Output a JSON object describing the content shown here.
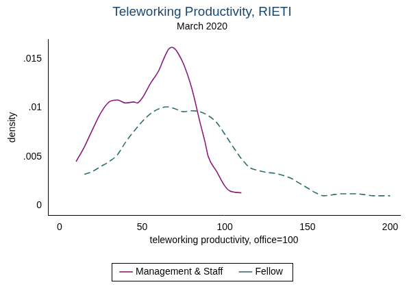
{
  "chart_data": {
    "type": "line",
    "title": "Teleworking Productivity, RIETI",
    "subtitle": "March 2020",
    "x_label": "teleworking productivity, office=100",
    "y_label": "density",
    "xlim": [
      -7,
      206
    ],
    "xticks": [
      0,
      50,
      100,
      150,
      200
    ],
    "ylim": [
      -0.001,
      0.017
    ],
    "yticks": [
      0,
      {
        "value": 0.005,
        "label": ".005"
      },
      {
        "value": 0.01,
        "label": ".01"
      },
      {
        "value": 0.015,
        "label": ".015"
      }
    ],
    "grid": false,
    "legend": "bottom",
    "series": [
      {
        "name": "Management & Staff",
        "color": "#8b1a7e",
        "line_style": "solid",
        "x": [
          10,
          15,
          20,
          25,
          30,
          35,
          40,
          45,
          47,
          50,
          55,
          60,
          63,
          66,
          68,
          70,
          72,
          75,
          80,
          85,
          88,
          90,
          95,
          100,
          103,
          110
        ],
        "values": [
          0.0045,
          0.006,
          0.0078,
          0.0095,
          0.0106,
          0.0108,
          0.0105,
          0.0106,
          0.0105,
          0.011,
          0.0125,
          0.0138,
          0.015,
          0.016,
          0.0162,
          0.016,
          0.0155,
          0.0145,
          0.012,
          0.0085,
          0.0065,
          0.005,
          0.0035,
          0.002,
          0.0015,
          0.0013
        ]
      },
      {
        "name": "Fellow",
        "color": "#2e6e6e",
        "line_style": "dashed",
        "x": [
          15,
          20,
          25,
          30,
          35,
          40,
          45,
          50,
          55,
          60,
          65,
          70,
          75,
          80,
          85,
          90,
          95,
          100,
          105,
          110,
          115,
          120,
          125,
          130,
          135,
          140,
          145,
          150,
          155,
          160,
          165,
          170,
          175,
          180,
          185,
          190,
          195,
          200
        ],
        "values": [
          0.0032,
          0.0035,
          0.004,
          0.0045,
          0.0052,
          0.0065,
          0.0076,
          0.0086,
          0.0094,
          0.0099,
          0.0101,
          0.0099,
          0.0096,
          0.0097,
          0.0096,
          0.0092,
          0.0085,
          0.0073,
          0.006,
          0.0048,
          0.0039,
          0.0036,
          0.0034,
          0.0033,
          0.0031,
          0.0028,
          0.0023,
          0.0018,
          0.0013,
          0.001,
          0.0011,
          0.0012,
          0.0012,
          0.0012,
          0.0011,
          0.001,
          0.001,
          0.001
        ]
      }
    ]
  }
}
